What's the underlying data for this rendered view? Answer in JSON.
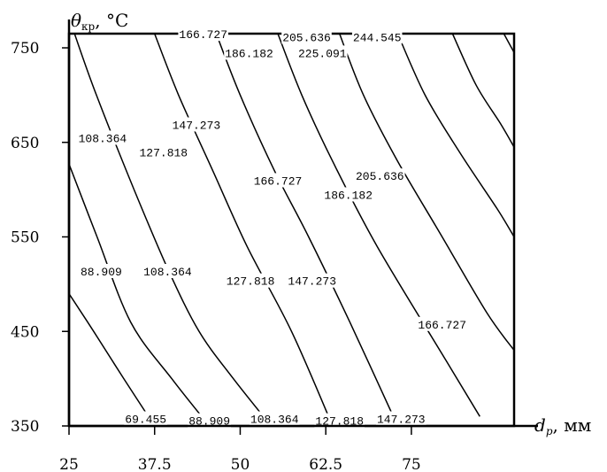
{
  "chart_data": {
    "type": "contour",
    "x_axis": {
      "label_symbol": "d",
      "label_subscript": "p",
      "label_unit": ", мм",
      "range": [
        25,
        90
      ],
      "ticks": [
        25,
        37.5,
        50,
        62.5,
        75
      ],
      "tick_labels": [
        "25",
        "37.5",
        "50",
        "62.5",
        "75"
      ]
    },
    "y_axis": {
      "label_symbol": "θ",
      "label_subscript": "кр",
      "label_unit": ", °С",
      "range": [
        350,
        765
      ],
      "ticks": [
        350,
        450,
        550,
        650,
        750
      ],
      "tick_labels": [
        "350",
        "450",
        "550",
        "650",
        "750"
      ]
    },
    "grid": false,
    "contours": [
      {
        "level": "69.455",
        "points": [
          [
            25,
            490
          ],
          [
            28.6,
            450
          ],
          [
            33,
            400
          ],
          [
            37.5,
            350
          ]
        ]
      },
      {
        "level": "88.909",
        "points": [
          [
            25,
            627
          ],
          [
            29.1,
            550
          ],
          [
            34,
            460
          ],
          [
            40,
            400
          ],
          [
            45.5,
            350
          ]
        ]
      },
      {
        "level": "108.364",
        "points": [
          [
            25.8,
            765
          ],
          [
            29,
            700
          ],
          [
            34.5,
            600
          ],
          [
            39.5,
            515
          ],
          [
            44,
            450
          ],
          [
            49,
            400
          ],
          [
            54.5,
            350
          ]
        ]
      },
      {
        "level": "127.818",
        "points": [
          [
            37.5,
            765
          ],
          [
            41,
            700
          ],
          [
            46,
            620
          ],
          [
            51,
            540
          ],
          [
            57.5,
            450
          ],
          [
            63.5,
            350
          ]
        ]
      },
      {
        "level": "147.273",
        "points": [
          [
            46.5,
            765
          ],
          [
            50,
            700
          ],
          [
            55,
            620
          ],
          [
            60,
            550
          ],
          [
            66,
            460
          ],
          [
            73,
            350
          ]
        ]
      },
      {
        "level": "166.727",
        "points": [
          [
            55.5,
            765
          ],
          [
            59,
            700
          ],
          [
            63.5,
            630
          ],
          [
            70,
            540
          ],
          [
            80,
            420
          ],
          [
            85,
            360
          ]
        ]
      },
      {
        "level": "186.182",
        "points": [
          [
            64.5,
            765
          ],
          [
            68,
            700
          ],
          [
            73,
            630
          ],
          [
            79.5,
            550
          ],
          [
            86,
            470
          ],
          [
            90,
            430
          ]
        ]
      },
      {
        "level": "205.636",
        "points": [
          [
            73,
            765
          ],
          [
            77,
            700
          ],
          [
            82,
            640
          ],
          [
            87.5,
            580
          ],
          [
            90,
            550
          ]
        ]
      },
      {
        "level": "225.091",
        "points": [
          [
            81,
            765
          ],
          [
            84.5,
            710
          ],
          [
            88,
            670
          ],
          [
            90,
            645
          ]
        ]
      },
      {
        "level": "244.545",
        "points": [
          [
            88.5,
            765
          ],
          [
            90,
            745
          ]
        ]
      }
    ],
    "labels": [
      {
        "text": "69.455",
        "x": 36.2,
        "y": 357
      },
      {
        "text": "88.909",
        "x": 45.5,
        "y": 355
      },
      {
        "text": "108.364",
        "x": 55,
        "y": 357
      },
      {
        "text": "127.818",
        "x": 64.5,
        "y": 355
      },
      {
        "text": "147.273",
        "x": 73.5,
        "y": 357
      },
      {
        "text": "88.909",
        "x": 29.7,
        "y": 513
      },
      {
        "text": "108.364",
        "x": 39.4,
        "y": 513
      },
      {
        "text": "127.818",
        "x": 51.5,
        "y": 503
      },
      {
        "text": "147.273",
        "x": 60.5,
        "y": 503
      },
      {
        "text": "166.727",
        "x": 79.5,
        "y": 457
      },
      {
        "text": "108.364",
        "x": 29.9,
        "y": 654
      },
      {
        "text": "127.818",
        "x": 38.8,
        "y": 639
      },
      {
        "text": "147.273",
        "x": 43.6,
        "y": 668
      },
      {
        "text": "166.727",
        "x": 55.5,
        "y": 609
      },
      {
        "text": "186.182",
        "x": 65.8,
        "y": 594
      },
      {
        "text": "205.636",
        "x": 70.4,
        "y": 614
      },
      {
        "text": "166.727",
        "x": 44.6,
        "y": 764
      },
      {
        "text": "205.636",
        "x": 59.7,
        "y": 761
      },
      {
        "text": "244.545",
        "x": 70,
        "y": 761
      },
      {
        "text": "186.182",
        "x": 51.3,
        "y": 744
      },
      {
        "text": "225.091",
        "x": 62,
        "y": 744
      }
    ]
  }
}
